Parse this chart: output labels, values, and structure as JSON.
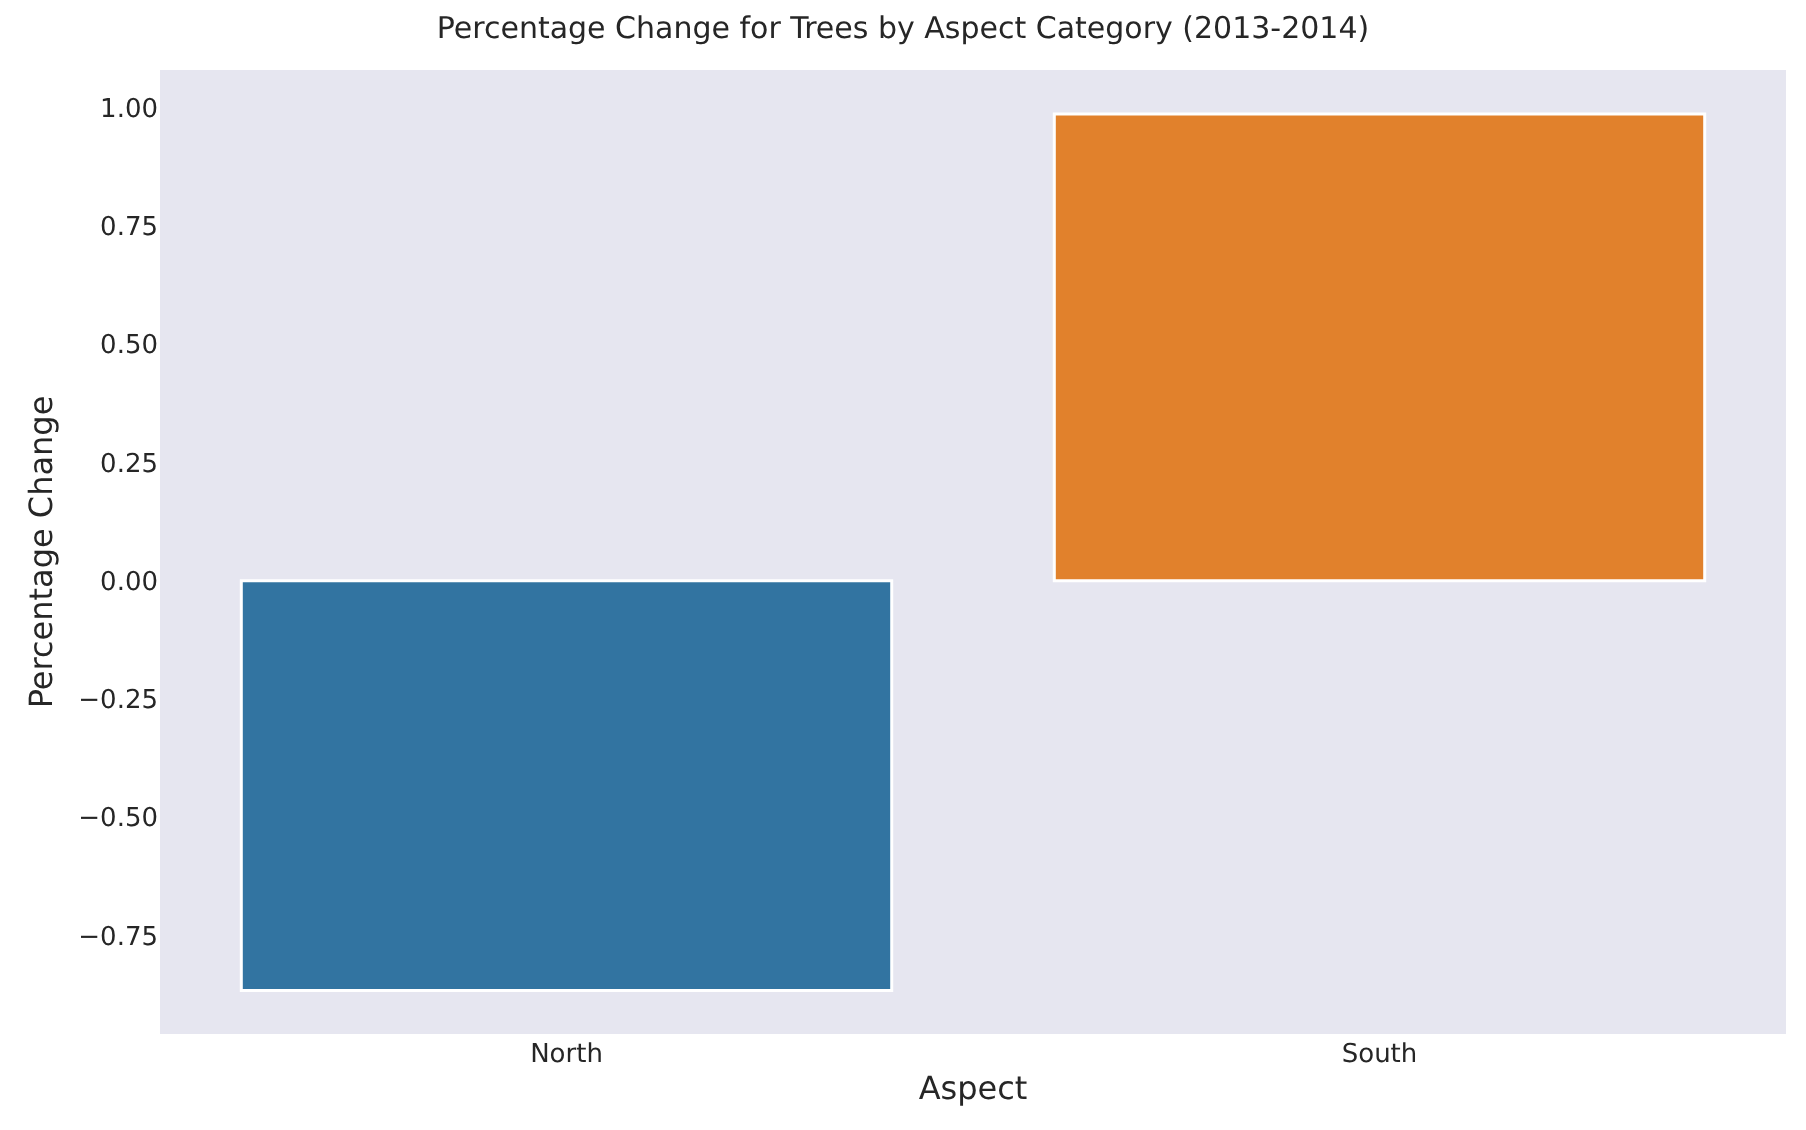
{
  "chart_data": {
    "type": "bar",
    "title": "Percentage Change for Trees by Aspect Category (2013-2014)",
    "xlabel": "Aspect",
    "ylabel": "Percentage Change",
    "categories": [
      "North",
      "South"
    ],
    "values": [
      -0.866,
      0.987
    ],
    "colors": [
      "#3274a1",
      "#e1812c"
    ],
    "ylim": [
      -0.958,
      1.08
    ],
    "yticks": [
      {
        "value": -0.75,
        "label": "−0.75"
      },
      {
        "value": -0.5,
        "label": "−0.50"
      },
      {
        "value": -0.25,
        "label": "−0.25"
      },
      {
        "value": 0,
        "label": "0.00"
      },
      {
        "value": 0.25,
        "label": "0.25"
      },
      {
        "value": 0.5,
        "label": "0.50"
      },
      {
        "value": 0.75,
        "label": "0.75"
      },
      {
        "value": 1,
        "label": "1.00"
      }
    ],
    "grid": false
  }
}
